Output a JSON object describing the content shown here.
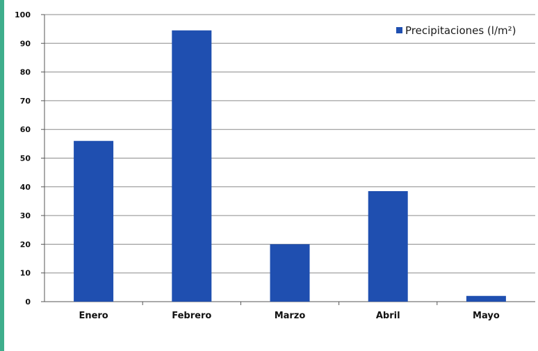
{
  "chart_data": {
    "type": "bar",
    "categories": [
      "Enero",
      "Febrero",
      "Marzo",
      "Abril",
      "Mayo"
    ],
    "series": [
      {
        "name": "Precipitaciones (l/m²)",
        "values": [
          56,
          94.5,
          20,
          38.5,
          2
        ]
      }
    ],
    "ylim": [
      0,
      100
    ],
    "yticks": [
      0,
      10,
      20,
      30,
      40,
      50,
      60,
      70,
      80,
      90,
      100
    ],
    "grid": true,
    "legend_position": "top-right",
    "colors": {
      "bar": "#1f4fb0",
      "grid": "#8a8a8a"
    },
    "title": "",
    "xlabel": "",
    "ylabel": ""
  }
}
